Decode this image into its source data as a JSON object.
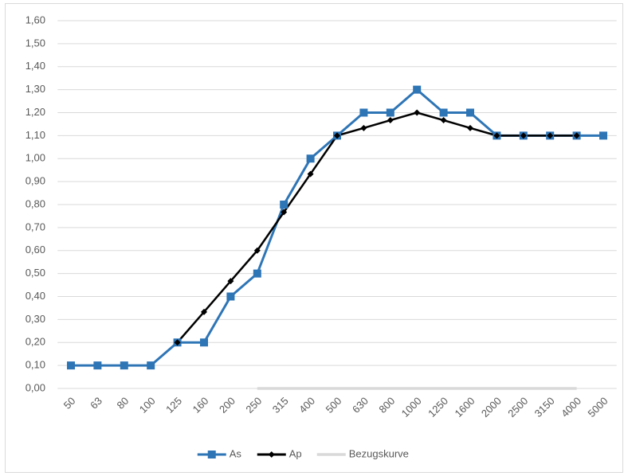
{
  "chart_data": {
    "type": "line",
    "categories": [
      "50",
      "63",
      "80",
      "100",
      "125",
      "160",
      "200",
      "250",
      "315",
      "400",
      "500",
      "630",
      "800",
      "1000",
      "1250",
      "1600",
      "2000",
      "2500",
      "3150",
      "4000",
      "5000"
    ],
    "series": [
      {
        "name": "As",
        "color": "#2e75b6",
        "marker": "square",
        "values": [
          0.1,
          0.1,
          0.1,
          0.1,
          0.2,
          0.2,
          0.4,
          0.5,
          0.8,
          1.0,
          1.1,
          1.2,
          1.2,
          1.3,
          1.2,
          1.2,
          1.1,
          1.1,
          1.1,
          1.1,
          1.1
        ]
      },
      {
        "name": "Ap",
        "color": "#000000",
        "marker": "diamond",
        "values": [
          null,
          null,
          null,
          null,
          0.2,
          0.333,
          0.467,
          0.6,
          0.767,
          0.933,
          1.1,
          1.133,
          1.167,
          1.2,
          1.167,
          1.133,
          1.1,
          1.1,
          1.1,
          1.1,
          null
        ]
      },
      {
        "name": "Bezugskurve",
        "color": "#d9d9d9",
        "marker": "none",
        "values": [
          null,
          null,
          null,
          null,
          null,
          null,
          null,
          0,
          0,
          0,
          0,
          0,
          0,
          0,
          0,
          0,
          0,
          0,
          0,
          0,
          null
        ]
      }
    ],
    "ylim": [
      0,
      1.6
    ],
    "yticks": [
      {
        "value": 0,
        "label": "0,00"
      },
      {
        "value": 0.1,
        "label": "0,10"
      },
      {
        "value": 0.2,
        "label": "0,20"
      },
      {
        "value": 0.3,
        "label": "0,30"
      },
      {
        "value": 0.4,
        "label": "0,40"
      },
      {
        "value": 0.5,
        "label": "0,50"
      },
      {
        "value": 0.6,
        "label": "0,60"
      },
      {
        "value": 0.7,
        "label": "0,70"
      },
      {
        "value": 0.8,
        "label": "0,80"
      },
      {
        "value": 0.9,
        "label": "0,90"
      },
      {
        "value": 1.0,
        "label": "1,00"
      },
      {
        "value": 1.1,
        "label": "1,10"
      },
      {
        "value": 1.2,
        "label": "1,20"
      },
      {
        "value": 1.3,
        "label": "1,30"
      },
      {
        "value": 1.4,
        "label": "1,40"
      },
      {
        "value": 1.5,
        "label": "1,50"
      },
      {
        "value": 1.6,
        "label": "1,60"
      }
    ],
    "grid": true,
    "legend": "bottom"
  }
}
